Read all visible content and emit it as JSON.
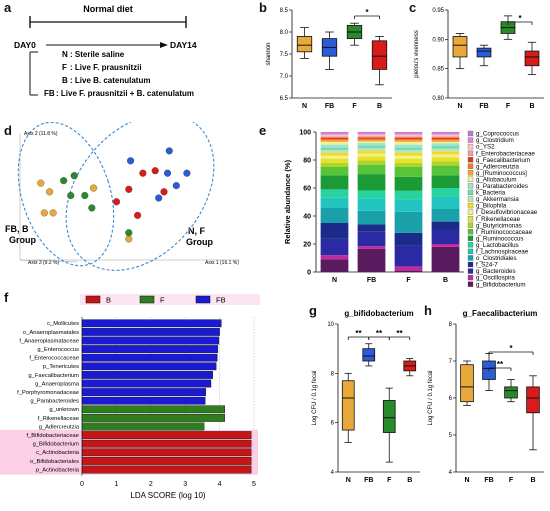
{
  "panels": {
    "a": {
      "label": "a",
      "diet_title": "Normal diet",
      "day_start": "DAY0",
      "day_end": "DAY14",
      "groups": [
        {
          "code": "N",
          "desc": ": Sterile saline"
        },
        {
          "code": "F",
          "desc": ": Live F. prausnitzii"
        },
        {
          "code": "B",
          "desc": ": Live B. catenulatum"
        },
        {
          "code": "FB",
          "desc": ": Live F. prausnitzii + B. catenulatum"
        }
      ]
    },
    "b": {
      "label": "b"
    },
    "c": {
      "label": "c"
    },
    "d": {
      "label": "d",
      "group1_label": "FB, B\nGroup",
      "group2_label": "N, F\nGroup",
      "axis1_label": "Axis 1 (16.1 %)",
      "axis2_label": "Axis 2 (11.8 %)",
      "axis3_label": "Axis 3 (9.2 %)"
    },
    "e": {
      "label": "e"
    },
    "f": {
      "label": "f"
    },
    "g": {
      "label": "g"
    },
    "h": {
      "label": "h"
    }
  },
  "colors": {
    "N": "#e8a93a",
    "FB": "#2c5bd8",
    "F": "#2a8a2a",
    "B": "#d81c1c",
    "lda_B": "#c41616",
    "lda_F": "#2f7d1e",
    "lda_FB": "#1a1ad4"
  },
  "chart_data": [
    {
      "id": "b",
      "type": "box",
      "title": "",
      "ylabel": "shannon",
      "categories": [
        "N",
        "FB",
        "F",
        "B"
      ],
      "ylim": [
        6.5,
        8.5
      ],
      "yticks": [
        6.5,
        7.0,
        7.5,
        8.0,
        8.5
      ],
      "boxes": [
        {
          "min": 7.4,
          "q1": 7.55,
          "median": 7.7,
          "q3": 7.9,
          "max": 8.1
        },
        {
          "min": 7.15,
          "q1": 7.45,
          "median": 7.65,
          "q3": 7.85,
          "max": 8.0
        },
        {
          "min": 7.7,
          "q1": 7.85,
          "median": 8.0,
          "q3": 8.15,
          "max": 8.2
        },
        {
          "min": 6.8,
          "q1": 7.15,
          "median": 7.45,
          "q3": 7.8,
          "max": 7.9
        }
      ],
      "significance": [
        {
          "from": "F",
          "to": "B",
          "label": "*"
        }
      ]
    },
    {
      "id": "c",
      "type": "box",
      "title": "",
      "ylabel": "pielou's evenness",
      "categories": [
        "N",
        "FB",
        "F",
        "B"
      ],
      "ylim": [
        0.8,
        0.95
      ],
      "yticks": [
        0.8,
        0.85,
        0.9,
        0.95
      ],
      "boxes": [
        {
          "min": 0.85,
          "q1": 0.87,
          "median": 0.89,
          "q3": 0.905,
          "max": 0.91
        },
        {
          "min": 0.855,
          "q1": 0.87,
          "median": 0.88,
          "q3": 0.885,
          "max": 0.89
        },
        {
          "min": 0.9,
          "q1": 0.91,
          "median": 0.92,
          "q3": 0.93,
          "max": 0.94
        },
        {
          "min": 0.84,
          "q1": 0.855,
          "median": 0.87,
          "q3": 0.88,
          "max": 0.895
        }
      ],
      "significance": [
        {
          "from": "F",
          "to": "B",
          "label": "*"
        }
      ]
    },
    {
      "id": "d",
      "type": "scatter",
      "title": "",
      "points": [
        {
          "x": 0.05,
          "y": 0.62,
          "g": "N"
        },
        {
          "x": 0.1,
          "y": 0.55,
          "g": "N"
        },
        {
          "x": 0.07,
          "y": 0.38,
          "g": "N"
        },
        {
          "x": 0.12,
          "y": 0.38,
          "g": "N"
        },
        {
          "x": 0.35,
          "y": 0.58,
          "g": "N"
        },
        {
          "x": 0.55,
          "y": 0.17,
          "g": "N"
        },
        {
          "x": 0.24,
          "y": 0.68,
          "g": "F"
        },
        {
          "x": 0.18,
          "y": 0.64,
          "g": "F"
        },
        {
          "x": 0.22,
          "y": 0.52,
          "g": "F"
        },
        {
          "x": 0.3,
          "y": 0.52,
          "g": "F"
        },
        {
          "x": 0.34,
          "y": 0.42,
          "g": "F"
        },
        {
          "x": 0.55,
          "y": 0.22,
          "g": "F"
        },
        {
          "x": 0.63,
          "y": 0.7,
          "g": "B"
        },
        {
          "x": 0.7,
          "y": 0.72,
          "g": "B"
        },
        {
          "x": 0.55,
          "y": 0.57,
          "g": "B"
        },
        {
          "x": 0.75,
          "y": 0.55,
          "g": "B"
        },
        {
          "x": 0.48,
          "y": 0.47,
          "g": "B"
        },
        {
          "x": 0.6,
          "y": 0.36,
          "g": "B"
        },
        {
          "x": 0.78,
          "y": 0.88,
          "g": "FB"
        },
        {
          "x": 0.56,
          "y": 0.8,
          "g": "FB"
        },
        {
          "x": 0.77,
          "y": 0.7,
          "g": "FB"
        },
        {
          "x": 0.82,
          "y": 0.6,
          "g": "FB"
        },
        {
          "x": 0.72,
          "y": 0.5,
          "g": "FB"
        },
        {
          "x": 0.88,
          "y": 0.7,
          "g": "FB"
        }
      ]
    },
    {
      "id": "e",
      "type": "stacked_bar",
      "title": "",
      "ylabel": "Relative abundance (%)",
      "categories": [
        "N",
        "FB",
        "F",
        "B"
      ],
      "ylim": [
        0,
        100
      ],
      "yticks": [
        0,
        20,
        40,
        60,
        80,
        100
      ],
      "series": [
        {
          "name": "g_Bifidobacterium",
          "color": "#5a1a5e",
          "values": [
            9,
            17,
            1,
            18
          ]
        },
        {
          "name": "g_Oscillospira",
          "color": "#c02aa0",
          "values": [
            3,
            2,
            3,
            2
          ]
        },
        {
          "name": "g_Bacteroides",
          "color": "#2c2aa2",
          "values": [
            12,
            11,
            15,
            10
          ]
        },
        {
          "name": "f_S24-7",
          "color": "#1a2b8a",
          "values": [
            11,
            5,
            9,
            6
          ]
        },
        {
          "name": "o_Clostridiales",
          "color": "#1aa0a8",
          "values": [
            11,
            10,
            15,
            9
          ]
        },
        {
          "name": "f_Lachnospiraceae",
          "color": "#22c4c0",
          "values": [
            7,
            9,
            9,
            9
          ]
        },
        {
          "name": "g_Lactobacillus",
          "color": "#27d4a0",
          "values": [
            6,
            6,
            6,
            6
          ]
        },
        {
          "name": "g_Ruminococcus",
          "color": "#1c9a36",
          "values": [
            10,
            12,
            10,
            9
          ]
        },
        {
          "name": "f_Ruminococcaceae",
          "color": "#58c43a",
          "values": [
            6,
            7,
            7,
            7
          ]
        },
        {
          "name": "g_Butyricimonas",
          "color": "#b0d42a",
          "values": [
            3,
            3,
            3,
            3
          ]
        },
        {
          "name": "f_Rikenellaceae",
          "color": "#e6e22a",
          "values": [
            3,
            3,
            3,
            3
          ]
        },
        {
          "name": "f_Desulfovibrionaceae",
          "color": "#f2f28a",
          "values": [
            2,
            2,
            2,
            2
          ]
        },
        {
          "name": "g_Bilophila",
          "color": "#f6d82a",
          "values": [
            2,
            2,
            2,
            2
          ]
        },
        {
          "name": "g_Akkermansia",
          "color": "#b8e8b0",
          "values": [
            2,
            2,
            2,
            2
          ]
        },
        {
          "name": "k_Bacteria",
          "color": "#7ad8b8",
          "values": [
            2,
            2,
            2,
            2
          ]
        },
        {
          "name": "g_Parabacteroides",
          "color": "#98e8d0",
          "values": [
            2,
            2,
            2,
            2
          ]
        },
        {
          "name": "g_Allobaculum",
          "color": "#f4f098",
          "values": [
            2,
            1,
            2,
            1
          ]
        },
        {
          "name": "g_[Ruminococcus]",
          "color": "#f2a830",
          "values": [
            1,
            1,
            1,
            1
          ]
        },
        {
          "name": "g_Adlercreutzia",
          "color": "#f07a28",
          "values": [
            1,
            1,
            1,
            1
          ]
        },
        {
          "name": "g_Faecalibacterium",
          "color": "#e03818",
          "values": [
            1,
            1,
            1,
            1
          ]
        },
        {
          "name": "f_Enterobacteriaceae",
          "color": "#f0a0a0",
          "values": [
            1,
            1,
            1,
            1
          ]
        },
        {
          "name": "o_YS2",
          "color": "#f8c8c8",
          "values": [
            1,
            1,
            1,
            1
          ]
        },
        {
          "name": "g_Clostridium",
          "color": "#e888c8",
          "values": [
            1,
            1,
            1,
            1
          ]
        },
        {
          "name": "g_Coprococcus",
          "color": "#c078d8",
          "values": [
            1,
            1,
            1,
            1
          ]
        }
      ]
    },
    {
      "id": "f",
      "type": "bar_horizontal",
      "title": "",
      "xlabel": "LDA SCORE (log 10)",
      "xlim": [
        0,
        5
      ],
      "xticks": [
        0,
        1,
        2,
        3,
        4,
        5
      ],
      "legend": [
        "B",
        "F",
        "FB"
      ],
      "bars": [
        {
          "label": "c_Mollicutes",
          "value": 4.05,
          "g": "FB"
        },
        {
          "label": "o_Anaeroplasmatales",
          "value": 4.0,
          "g": "FB"
        },
        {
          "label": "f_Anaeroplasmataceae",
          "value": 3.98,
          "g": "FB"
        },
        {
          "label": "g_Enterococcus",
          "value": 3.95,
          "g": "FB"
        },
        {
          "label": "f_Enterococcaceae",
          "value": 3.93,
          "g": "FB"
        },
        {
          "label": "p_Tenericutes",
          "value": 3.9,
          "g": "FB"
        },
        {
          "label": "g_Faecalibacterium",
          "value": 3.8,
          "g": "FB"
        },
        {
          "label": "g_Anaeroplasma",
          "value": 3.75,
          "g": "FB"
        },
        {
          "label": "f_Porphyromonadaceae",
          "value": 3.6,
          "g": "FB"
        },
        {
          "label": "g_Parabacteroides",
          "value": 3.58,
          "g": "FB"
        },
        {
          "label": "g_unknown",
          "value": 4.15,
          "g": "F"
        },
        {
          "label": "f_Rikenellaceae",
          "value": 4.15,
          "g": "F"
        },
        {
          "label": "g_Adlercreutzia",
          "value": 3.55,
          "g": "F"
        },
        {
          "label": "f_Bifidobacteriaceae",
          "value": 4.92,
          "g": "B"
        },
        {
          "label": "g_Bifidobacterium",
          "value": 4.92,
          "g": "B"
        },
        {
          "label": "c_Actinobacteria",
          "value": 4.92,
          "g": "B"
        },
        {
          "label": "o_Bifidobacteriales",
          "value": 4.92,
          "g": "B"
        },
        {
          "label": "p_Actinobacteria",
          "value": 4.92,
          "g": "B"
        }
      ]
    },
    {
      "id": "g",
      "type": "box",
      "title": "g_bifidobacterium",
      "ylabel": "Log CFU / 0.1g fecal",
      "categories": [
        "N",
        "FB",
        "F",
        "B"
      ],
      "ylim": [
        4,
        10
      ],
      "yticks": [
        4,
        6,
        8,
        10
      ],
      "boxes": [
        {
          "min": 5.2,
          "q1": 5.7,
          "median": 7.0,
          "q3": 7.7,
          "max": 8.0
        },
        {
          "min": 8.3,
          "q1": 8.5,
          "median": 8.7,
          "q3": 9.0,
          "max": 9.2
        },
        {
          "min": 4.4,
          "q1": 5.6,
          "median": 6.2,
          "q3": 6.9,
          "max": 7.4
        },
        {
          "min": 7.9,
          "q1": 8.1,
          "median": 8.3,
          "q3": 8.5,
          "max": 8.6
        }
      ],
      "significance": [
        {
          "from": "N",
          "to": "FB",
          "label": "**"
        },
        {
          "from": "FB",
          "to": "F",
          "label": "**"
        },
        {
          "from": "F",
          "to": "B",
          "label": "**"
        }
      ]
    },
    {
      "id": "h",
      "type": "box",
      "title": "g_Faecalibacterium",
      "ylabel": "Log CFU / 0.1g fecal",
      "categories": [
        "N",
        "FB",
        "F",
        "B"
      ],
      "ylim": [
        4,
        8
      ],
      "yticks": [
        4,
        5,
        6,
        7,
        8
      ],
      "boxes": [
        {
          "min": 5.8,
          "q1": 5.9,
          "median": 6.3,
          "q3": 6.9,
          "max": 7.0
        },
        {
          "min": 6.2,
          "q1": 6.5,
          "median": 6.8,
          "q3": 7.0,
          "max": 7.2
        },
        {
          "min": 5.9,
          "q1": 6.0,
          "median": 6.2,
          "q3": 6.3,
          "max": 6.5
        },
        {
          "min": 4.6,
          "q1": 5.6,
          "median": 6.0,
          "q3": 6.3,
          "max": 6.6
        }
      ],
      "significance": [
        {
          "from": "FB",
          "to": "F",
          "label": "**"
        },
        {
          "from": "FB",
          "to": "B",
          "label": "*"
        }
      ]
    }
  ]
}
